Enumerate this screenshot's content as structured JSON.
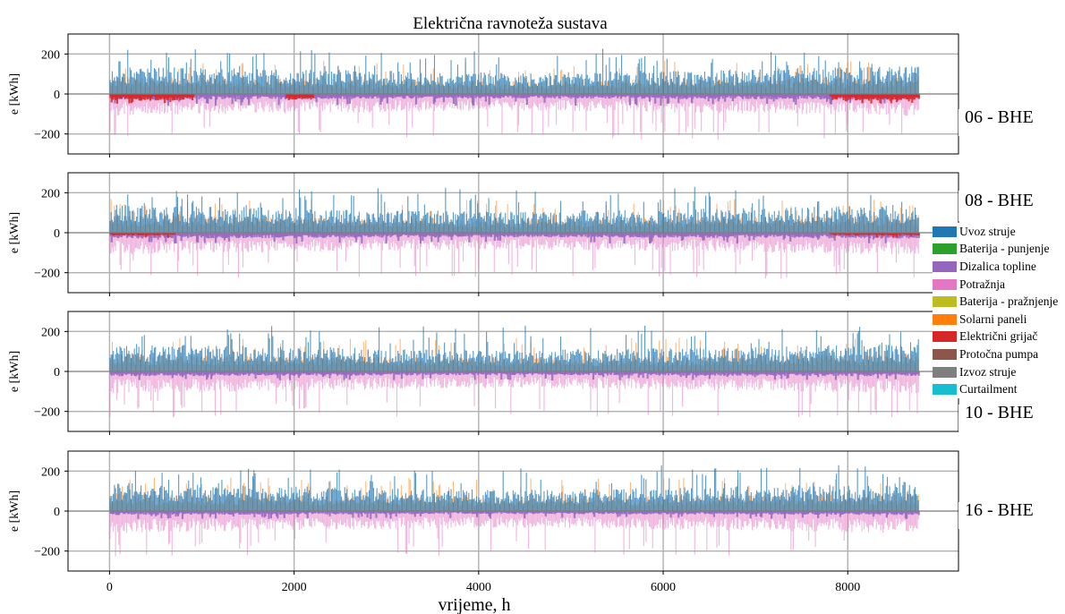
{
  "chart_data": {
    "type": "bar",
    "title": "Električna ravnoteža sustava",
    "xlabel": "vrijeme, h",
    "ylabel": "e [kWh]",
    "xlim": [
      -450,
      9200
    ],
    "ylim": [
      -300,
      300
    ],
    "xticks": [
      0,
      2000,
      4000,
      6000,
      8000
    ],
    "yticks": [
      200,
      0,
      -200
    ],
    "grid": true,
    "legend_position": "right",
    "legend": [
      {
        "name": "Uvoz struje",
        "color": "#1f77b4"
      },
      {
        "name": "Baterija - punjenje",
        "color": "#2ca02c"
      },
      {
        "name": "Dizalica topline",
        "color": "#9467bd"
      },
      {
        "name": "Potražnja",
        "color": "#e377c2"
      },
      {
        "name": "Baterija - pražnjenje",
        "color": "#bcbd22"
      },
      {
        "name": "Solarni paneli",
        "color": "#ff7f0e"
      },
      {
        "name": "Električni grijač",
        "color": "#d62728"
      },
      {
        "name": "Protočna pumpa",
        "color": "#8c564b"
      },
      {
        "name": "Izvoz struje",
        "color": "#7f7f7f"
      },
      {
        "name": "Curtailment",
        "color": "#17becf"
      }
    ],
    "panels": [
      {
        "label": "06 - BHE",
        "x_range_h": [
          0,
          8760
        ],
        "series": [
          {
            "name": "Uvoz struje",
            "typical_max_kWh": 140,
            "peak_kWh": 230
          },
          {
            "name": "Solarni paneli",
            "typical_max_kWh": 90,
            "peak_kWh": 170
          },
          {
            "name": "Potražnja",
            "typical_min_kWh": -110,
            "peak_kWh": -230
          },
          {
            "name": "Dizalica topline",
            "typical_min_kWh": -30,
            "peak_kWh": -60
          },
          {
            "name": "Električni grijač",
            "typical_min_kWh": -35,
            "peak_kWh": -50,
            "active_ranges_h": [
              [
                0,
                900
              ],
              [
                1900,
                2200
              ],
              [
                7800,
                8760
              ]
            ]
          }
        ]
      },
      {
        "label": "08 - BHE",
        "x_range_h": [
          0,
          8760
        ],
        "series": [
          {
            "name": "Uvoz struje",
            "typical_max_kWh": 140,
            "peak_kWh": 230
          },
          {
            "name": "Solarni paneli",
            "typical_max_kWh": 90,
            "peak_kWh": 170
          },
          {
            "name": "Potražnja",
            "typical_min_kWh": -110,
            "peak_kWh": -230
          },
          {
            "name": "Dizalica topline",
            "typical_min_kWh": -30,
            "peak_kWh": -55
          },
          {
            "name": "Električni grijač",
            "typical_min_kWh": -15,
            "peak_kWh": -25,
            "active_ranges_h": [
              [
                0,
                700
              ],
              [
                7800,
                8760
              ]
            ]
          }
        ]
      },
      {
        "label": "10 - BHE",
        "x_range_h": [
          0,
          8760
        ],
        "series": [
          {
            "name": "Uvoz struje",
            "typical_max_kWh": 140,
            "peak_kWh": 230
          },
          {
            "name": "Solarni paneli",
            "typical_max_kWh": 90,
            "peak_kWh": 170
          },
          {
            "name": "Potražnja",
            "typical_min_kWh": -110,
            "peak_kWh": -230
          },
          {
            "name": "Dizalica topline",
            "typical_min_kWh": -25,
            "peak_kWh": -45
          }
        ]
      },
      {
        "label": "16 - BHE",
        "x_range_h": [
          0,
          8760
        ],
        "series": [
          {
            "name": "Uvoz struje",
            "typical_max_kWh": 140,
            "peak_kWh": 230
          },
          {
            "name": "Solarni paneli",
            "typical_max_kWh": 90,
            "peak_kWh": 170
          },
          {
            "name": "Potražnja",
            "typical_min_kWh": -110,
            "peak_kWh": -230
          },
          {
            "name": "Dizalica topline",
            "typical_min_kWh": -20,
            "peak_kWh": -40
          }
        ]
      }
    ]
  }
}
